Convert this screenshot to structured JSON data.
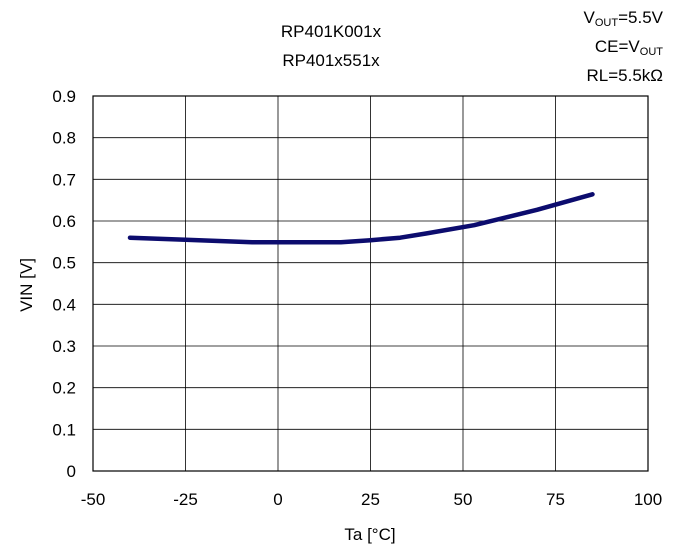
{
  "chart_data": {
    "type": "line",
    "title_lines": [
      "RP401K001x",
      "RP401x551x"
    ],
    "conditions": {
      "vout": {
        "prefix": "V",
        "sub": "OUT",
        "suffix": "=5.5V"
      },
      "ce": {
        "prefix": "CE=V",
        "sub": "OUT"
      },
      "rl": "RL=5.5kΩ"
    },
    "xlabel": "Ta [°C]",
    "ylabel": "VIN [V]",
    "xlim": [
      -50,
      100
    ],
    "ylim": [
      0,
      0.9
    ],
    "xticks": [
      -50,
      -25,
      0,
      25,
      50,
      75,
      100
    ],
    "yticks": [
      0,
      0.1,
      0.2,
      0.3,
      0.4,
      0.5,
      0.6,
      0.7,
      0.8,
      0.9
    ],
    "xtick_labels": [
      "-50",
      "-25",
      "0",
      "25",
      "50",
      "75",
      "100"
    ],
    "ytick_labels": [
      "0",
      "0.1",
      "0.2",
      "0.3",
      "0.4",
      "0.5",
      "0.6",
      "0.7",
      "0.8",
      "0.9"
    ],
    "grid": true,
    "series": [
      {
        "color": "#0c0c6e",
        "x": [
          -40,
          -25,
          -7,
          0,
          17,
          25,
          33,
          40,
          53,
          70,
          85
        ],
        "y": [
          0.56,
          0.555,
          0.549,
          0.549,
          0.549,
          0.554,
          0.56,
          0.57,
          0.59,
          0.627,
          0.664
        ]
      }
    ]
  }
}
